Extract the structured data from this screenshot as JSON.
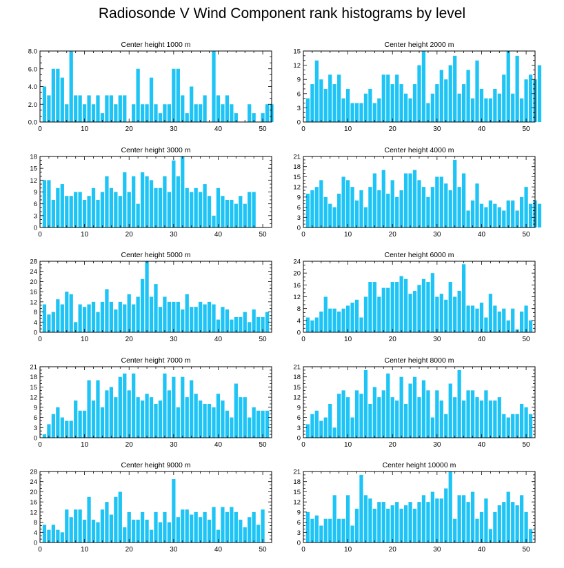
{
  "figure": {
    "title": "Radiosonde V Wind Component rank histograms by level",
    "bar_color": "#1ec4f5"
  },
  "chart_data": [
    {
      "type": "bar",
      "title": "Center height 1000 m",
      "xlim": [
        0,
        52
      ],
      "xticks": [
        0,
        10,
        20,
        30,
        40,
        50
      ],
      "ylim": [
        0,
        8
      ],
      "yticks": [
        0,
        2,
        4,
        6,
        8
      ],
      "ytick_labels": [
        "0.0",
        "2.0",
        "4.0",
        "6.0",
        "8.0"
      ],
      "values": [
        4,
        3,
        6,
        6,
        5,
        2,
        8,
        3,
        3,
        2,
        3,
        2,
        3,
        1,
        3,
        3,
        2,
        3,
        3,
        0,
        2,
        6,
        2,
        2,
        5,
        2,
        1,
        2,
        2,
        6,
        6,
        3,
        1,
        4,
        2,
        2,
        3,
        0,
        8,
        3,
        2,
        3,
        2,
        1,
        0,
        0,
        2,
        1,
        0,
        1,
        2,
        2
      ]
    },
    {
      "type": "bar",
      "title": "Center height 2000 m",
      "xlim": [
        0,
        52
      ],
      "xticks": [
        0,
        10,
        20,
        30,
        40,
        50
      ],
      "ylim": [
        0,
        15
      ],
      "yticks": [
        0,
        3,
        6,
        9,
        12,
        15
      ],
      "ytick_labels": [
        "0",
        "3",
        "6",
        "9",
        "12",
        "15"
      ],
      "values": [
        5,
        8,
        13,
        9,
        7,
        10,
        8,
        10,
        5,
        7,
        4,
        4,
        4,
        6,
        7,
        4,
        5,
        10,
        10,
        8,
        10,
        8,
        6,
        5,
        8,
        12,
        15,
        4,
        6,
        8,
        11,
        9,
        12,
        14,
        6,
        8,
        11,
        5,
        13,
        7,
        5,
        5,
        7,
        6,
        10,
        15,
        6,
        14,
        5,
        9,
        10,
        9,
        12
      ]
    },
    {
      "type": "bar",
      "title": "Center height 3000 m",
      "xlim": [
        0,
        52
      ],
      "xticks": [
        0,
        10,
        20,
        30,
        40,
        50
      ],
      "ylim": [
        0,
        18
      ],
      "yticks": [
        0,
        3,
        6,
        9,
        12,
        15,
        18
      ],
      "ytick_labels": [
        "0",
        "3",
        "6",
        "9",
        "12",
        "15",
        "18"
      ],
      "values": [
        12,
        12,
        7,
        10,
        11,
        8,
        8,
        9,
        9,
        7,
        8,
        10,
        7,
        9,
        13,
        10,
        9,
        8,
        14,
        9,
        13,
        6,
        14,
        13,
        12,
        10,
        10,
        13,
        9,
        17,
        13,
        18,
        10,
        9,
        10,
        9,
        11,
        8,
        3,
        10,
        8,
        7,
        7,
        6,
        8,
        6,
        9,
        9
      ]
    },
    {
      "type": "bar",
      "title": "Center height 4000 m",
      "xlim": [
        0,
        52
      ],
      "xticks": [
        0,
        10,
        20,
        30,
        40,
        50
      ],
      "ylim": [
        0,
        21
      ],
      "yticks": [
        0,
        3,
        6,
        9,
        12,
        15,
        18,
        21
      ],
      "ytick_labels": [
        "0",
        "3",
        "6",
        "9",
        "12",
        "15",
        "18",
        "21"
      ],
      "values": [
        10,
        11,
        12,
        14,
        9,
        7,
        6,
        10,
        15,
        14,
        12,
        8,
        11,
        6,
        12,
        16,
        11,
        17,
        10,
        14,
        9,
        11,
        16,
        16,
        17,
        14,
        12,
        9,
        12,
        15,
        15,
        13,
        11,
        20,
        12,
        16,
        5,
        8,
        13,
        7,
        6,
        8,
        7,
        6,
        5,
        8,
        8,
        5,
        9,
        12,
        7,
        8,
        7
      ]
    },
    {
      "type": "bar",
      "title": "Center height 5000 m",
      "xlim": [
        0,
        52
      ],
      "xticks": [
        0,
        10,
        20,
        30,
        40,
        50
      ],
      "ylim": [
        0,
        28
      ],
      "yticks": [
        0,
        4,
        8,
        12,
        16,
        20,
        24,
        28
      ],
      "ytick_labels": [
        "0",
        "4",
        "8",
        "12",
        "16",
        "20",
        "24",
        "28"
      ],
      "values": [
        11,
        7,
        8,
        13,
        11,
        16,
        15,
        4,
        11,
        10,
        11,
        12,
        8,
        12,
        17,
        12,
        9,
        12,
        11,
        15,
        11,
        14,
        21,
        28,
        14,
        19,
        10,
        14,
        12,
        12,
        12,
        9,
        15,
        10,
        10,
        12,
        11,
        12,
        11,
        5,
        10,
        9,
        5,
        6,
        6,
        8,
        4,
        9,
        6,
        6,
        8
      ]
    },
    {
      "type": "bar",
      "title": "Center height 6000 m",
      "xlim": [
        0,
        52
      ],
      "xticks": [
        0,
        10,
        20,
        30,
        40,
        50
      ],
      "ylim": [
        0,
        24
      ],
      "yticks": [
        0,
        4,
        8,
        12,
        16,
        20,
        24
      ],
      "ytick_labels": [
        "0",
        "4",
        "8",
        "12",
        "16",
        "20",
        "24"
      ],
      "values": [
        5,
        4,
        5,
        7,
        12,
        8,
        8,
        7,
        8,
        9,
        10,
        11,
        5,
        12,
        17,
        17,
        12,
        15,
        15,
        17,
        17,
        19,
        18,
        13,
        14,
        16,
        18,
        17,
        20,
        12,
        13,
        11,
        17,
        12,
        14,
        23,
        9,
        9,
        8,
        10,
        5,
        13,
        9,
        7,
        8,
        4,
        8,
        1,
        7,
        9,
        4
      ]
    },
    {
      "type": "bar",
      "title": "Center height 7000 m",
      "xlim": [
        0,
        52
      ],
      "xticks": [
        0,
        10,
        20,
        30,
        40,
        50
      ],
      "ylim": [
        0,
        21
      ],
      "yticks": [
        0,
        3,
        6,
        9,
        12,
        15,
        18,
        21
      ],
      "ytick_labels": [
        "0",
        "3",
        "6",
        "9",
        "12",
        "15",
        "18",
        "21"
      ],
      "values": [
        1,
        4,
        7,
        9,
        6,
        5,
        5,
        11,
        8,
        8,
        17,
        11,
        17,
        9,
        14,
        15,
        12,
        18,
        19,
        14,
        19,
        12,
        11,
        13,
        12,
        10,
        11,
        19,
        14,
        18,
        9,
        18,
        12,
        17,
        13,
        11,
        10,
        10,
        9,
        13,
        11,
        8,
        6,
        16,
        12,
        12,
        6,
        9,
        8,
        8,
        8
      ]
    },
    {
      "type": "bar",
      "title": "Center height 8000 m",
      "xlim": [
        0,
        52
      ],
      "xticks": [
        0,
        10,
        20,
        30,
        40,
        50
      ],
      "ylim": [
        0,
        21
      ],
      "yticks": [
        0,
        3,
        6,
        9,
        12,
        15,
        18,
        21
      ],
      "ytick_labels": [
        "0",
        "3",
        "6",
        "9",
        "12",
        "15",
        "18",
        "21"
      ],
      "values": [
        4,
        7,
        8,
        5,
        6,
        10,
        3,
        13,
        14,
        12,
        6,
        14,
        13,
        20,
        10,
        15,
        12,
        14,
        19,
        12,
        11,
        18,
        10,
        16,
        18,
        12,
        17,
        14,
        6,
        14,
        11,
        7,
        16,
        12,
        20,
        11,
        14,
        14,
        12,
        11,
        14,
        11,
        11,
        12,
        7,
        6,
        7,
        7,
        10,
        9,
        7
      ]
    },
    {
      "type": "bar",
      "title": "Center height 9000 m",
      "xlim": [
        0,
        52
      ],
      "xticks": [
        0,
        10,
        20,
        30,
        40,
        50
      ],
      "ylim": [
        0,
        28
      ],
      "yticks": [
        0,
        4,
        8,
        12,
        16,
        20,
        24,
        28
      ],
      "ytick_labels": [
        "0",
        "4",
        "8",
        "12",
        "16",
        "20",
        "24",
        "28"
      ],
      "values": [
        7,
        5,
        7,
        5,
        4,
        13,
        10,
        13,
        13,
        9,
        18,
        9,
        8,
        13,
        16,
        11,
        18,
        20,
        6,
        12,
        9,
        9,
        12,
        9,
        5,
        12,
        8,
        12,
        8,
        25,
        10,
        13,
        13,
        11,
        12,
        10,
        12,
        9,
        14,
        5,
        14,
        12,
        14,
        12,
        9,
        6,
        10,
        12,
        7,
        13
      ]
    },
    {
      "type": "bar",
      "title": "Center height 10000 m",
      "xlim": [
        0,
        52
      ],
      "xticks": [
        0,
        10,
        20,
        30,
        40,
        50
      ],
      "ylim": [
        0,
        21
      ],
      "yticks": [
        0,
        3,
        6,
        9,
        12,
        15,
        18,
        21
      ],
      "ytick_labels": [
        "0",
        "3",
        "6",
        "9",
        "12",
        "15",
        "18",
        "21"
      ],
      "values": [
        9,
        7,
        8,
        5,
        7,
        7,
        14,
        7,
        7,
        14,
        5,
        10,
        20,
        14,
        13,
        10,
        12,
        12,
        10,
        11,
        12,
        10,
        11,
        12,
        10,
        12,
        14,
        12,
        15,
        13,
        13,
        16,
        21,
        7,
        14,
        14,
        12,
        15,
        7,
        9,
        13,
        4,
        9,
        11,
        12,
        15,
        12,
        11,
        14,
        9,
        4
      ]
    }
  ]
}
